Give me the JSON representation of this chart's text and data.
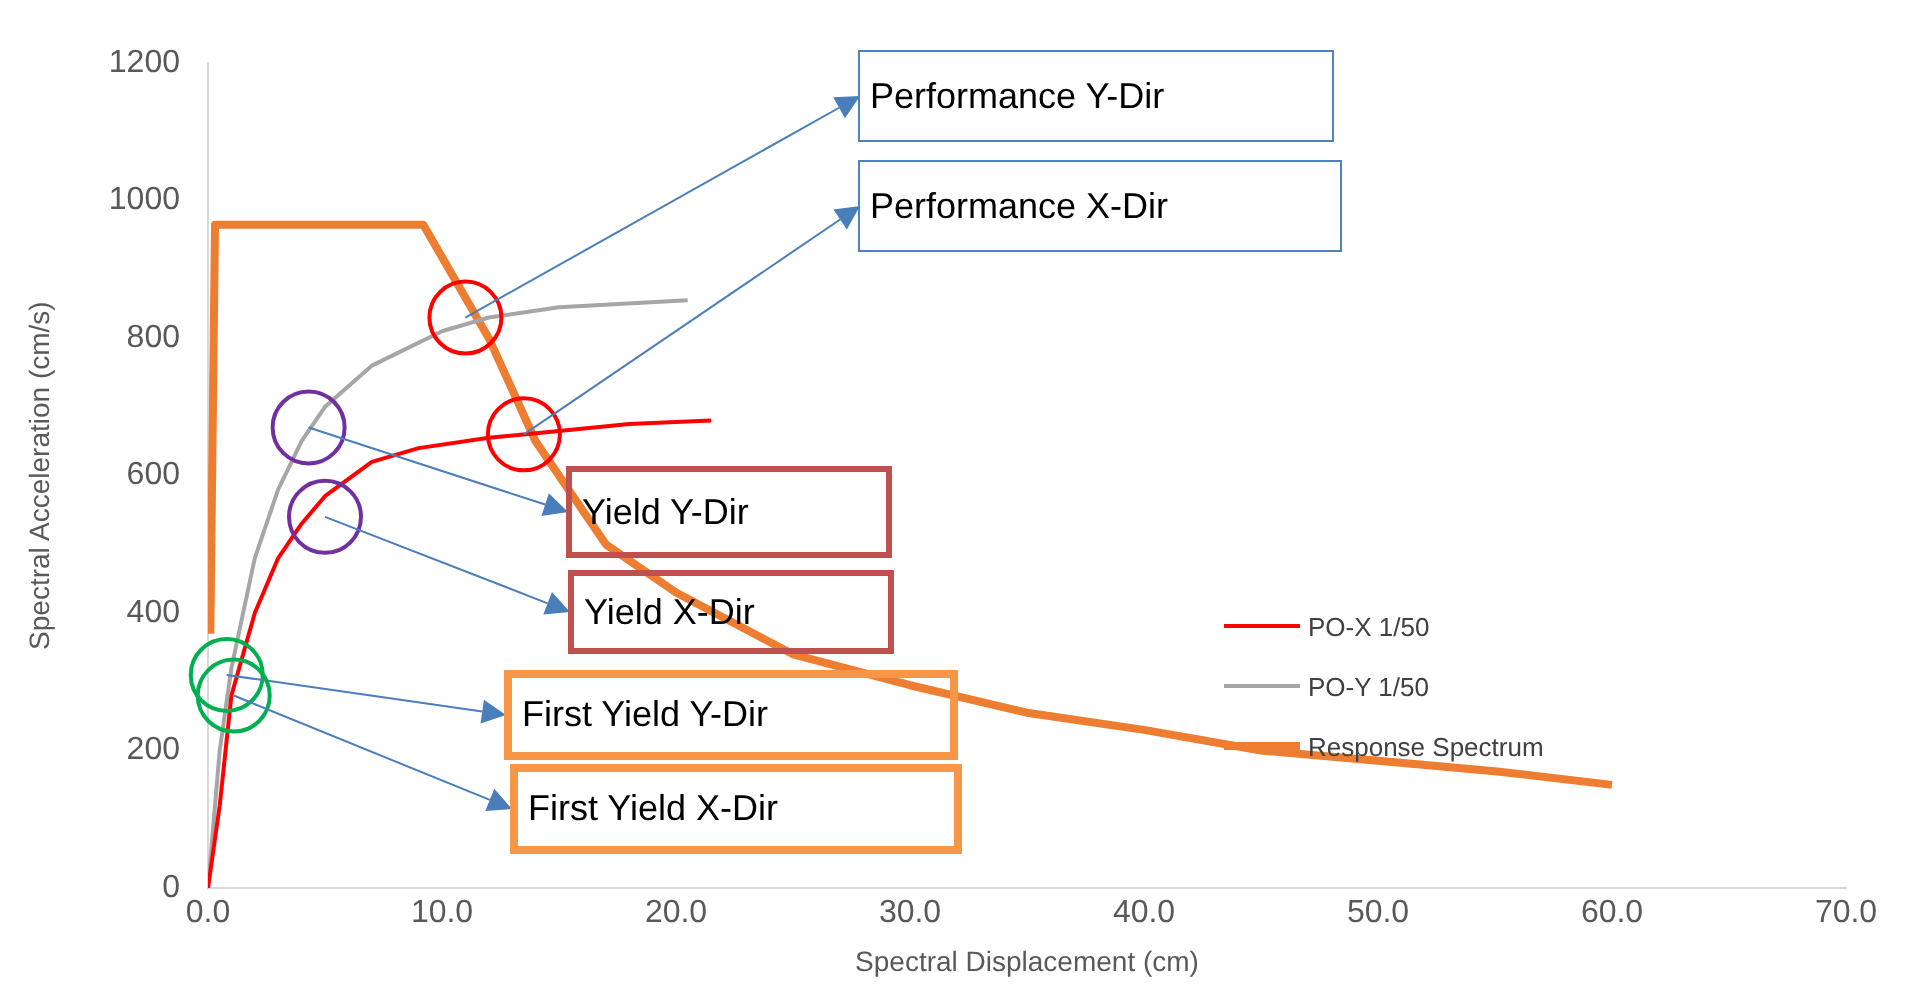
{
  "chart_data": {
    "type": "line",
    "xlabel": "Spectral Displacement (cm)",
    "ylabel": "Spectral Acceleration (cm/s)",
    "xlim": [
      0,
      70
    ],
    "xticks": [
      {
        "value": 0,
        "label": "0.0"
      },
      {
        "value": 10,
        "label": "10.0"
      },
      {
        "value": 20,
        "label": "20.0"
      },
      {
        "value": 30,
        "label": "30.0"
      },
      {
        "value": 40,
        "label": "40.0"
      },
      {
        "value": 50,
        "label": "50.0"
      },
      {
        "value": 60,
        "label": "60.0"
      },
      {
        "value": 70,
        "label": "70.0"
      }
    ],
    "ylim": [
      0,
      1200
    ],
    "yticks": [
      0,
      200,
      400,
      600,
      800,
      1000,
      1200
    ],
    "grid": false,
    "legend": "right",
    "marker": "none",
    "series": [
      {
        "name": "PO-X 1/50",
        "color": "#ff0000",
        "x": [
          0,
          0.5,
          1,
          2,
          3,
          4,
          5,
          7,
          9,
          12,
          15,
          18,
          21.5
        ],
        "values": [
          0,
          120,
          280,
          400,
          480,
          530,
          570,
          620,
          640,
          655,
          665,
          675,
          680
        ]
      },
      {
        "name": "PO-Y 1/50",
        "color": "#a6a6a6",
        "x": [
          0,
          0.5,
          1,
          2,
          3,
          4,
          5,
          7,
          10,
          12,
          15,
          20.5
        ],
        "values": [
          0,
          200,
          320,
          480,
          580,
          650,
          700,
          760,
          810,
          830,
          845,
          855
        ]
      },
      {
        "name": "Response Spectrum",
        "color": "#ed7d31",
        "x": [
          0.1,
          0.3,
          9.2,
          12,
          14,
          17,
          20,
          25,
          30,
          35,
          40,
          45,
          50,
          55,
          60
        ],
        "values": [
          370,
          965,
          965,
          800,
          650,
          500,
          430,
          340,
          295,
          255,
          230,
          200,
          185,
          170,
          150
        ]
      }
    ],
    "annotations": [
      {
        "text": "Performance Y-Dir",
        "x": 11,
        "y": 830
      },
      {
        "text": "Performance X-Dir",
        "x": 13.5,
        "y": 660
      },
      {
        "text": "Yield Y-Dir",
        "x": 4.3,
        "y": 670
      },
      {
        "text": "Yield X-Dir",
        "x": 5,
        "y": 540
      },
      {
        "text": "First Yield Y-Dir",
        "x": 0.8,
        "y": 310
      },
      {
        "text": "First Yield X-Dir",
        "x": 1.1,
        "y": 280
      }
    ]
  }
}
